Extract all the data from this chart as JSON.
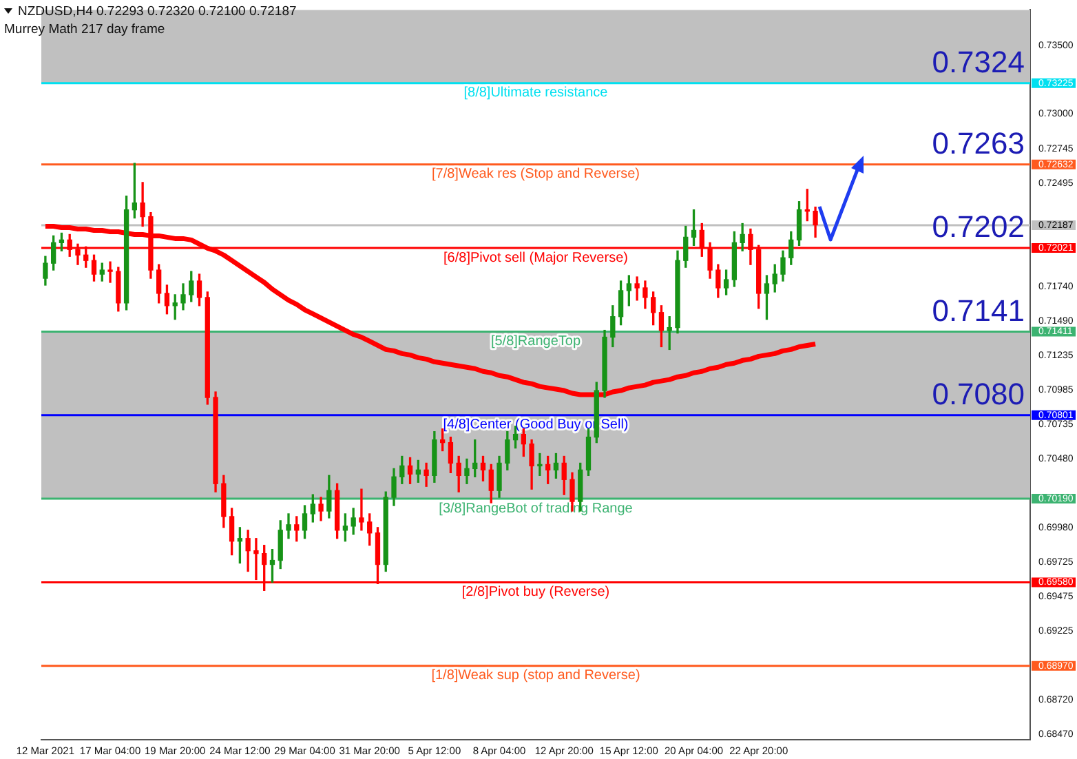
{
  "chart_data": {
    "type": "candlestick",
    "title": "NZDUSD,H4  0.72293 0.72320 0.72100 0.72187",
    "subtitle": "Murrey Math 217 day frame",
    "categories": [
      "12 Mar 2021",
      null,
      null,
      null,
      null,
      null,
      null,
      null,
      "17 Mar 04:00",
      null,
      null,
      null,
      null,
      null,
      null,
      null,
      "19 Mar 20:00",
      null,
      null,
      null,
      null,
      null,
      null,
      null,
      "24 Mar 12:00",
      null,
      null,
      null,
      null,
      null,
      null,
      null,
      "29 Mar 04:00",
      null,
      null,
      null,
      null,
      null,
      null,
      null,
      "31 Mar 20:00",
      null,
      null,
      null,
      null,
      null,
      null,
      null,
      "5 Apr 12:00",
      null,
      null,
      null,
      null,
      null,
      null,
      null,
      "8 Apr 04:00",
      null,
      null,
      null,
      null,
      null,
      null,
      null,
      "12 Apr 20:00",
      null,
      null,
      null,
      null,
      null,
      null,
      null,
      "15 Apr 12:00",
      null,
      null,
      null,
      null,
      null,
      null,
      null,
      "20 Apr 04:00",
      null,
      null,
      null,
      null,
      null,
      null,
      null,
      "22 Apr 20:00",
      null,
      null,
      null,
      null,
      null,
      null,
      null,
      null,
      null,
      null,
      null,
      null,
      null,
      null,
      null,
      null,
      null,
      null,
      null,
      null,
      null,
      null,
      null,
      null,
      null,
      null,
      null,
      null,
      null,
      null,
      null,
      null,
      null
    ],
    "series": [
      {
        "type": "candlestick",
        "ohlc": [
          [
            0.718,
            0.7196,
            0.7175,
            0.7191
          ],
          [
            0.7191,
            0.7211,
            0.7186,
            0.7206
          ],
          [
            0.7206,
            0.7213,
            0.72,
            0.7208
          ],
          [
            0.7208,
            0.7212,
            0.7196,
            0.7201
          ],
          [
            0.7201,
            0.7205,
            0.719,
            0.7197
          ],
          [
            0.7197,
            0.7203,
            0.7188,
            0.7193
          ],
          [
            0.7193,
            0.7197,
            0.7178,
            0.7183
          ],
          [
            0.7183,
            0.7191,
            0.7178,
            0.7186
          ],
          [
            0.7186,
            0.7192,
            0.7177,
            0.7185
          ],
          [
            0.7185,
            0.7188,
            0.7156,
            0.7162
          ],
          [
            0.7162,
            0.724,
            0.7157,
            0.723
          ],
          [
            0.723,
            0.7264,
            0.7224,
            0.7235
          ],
          [
            0.7235,
            0.725,
            0.7218,
            0.7225
          ],
          [
            0.7225,
            0.7228,
            0.718,
            0.7186
          ],
          [
            0.7186,
            0.719,
            0.7162,
            0.7169
          ],
          [
            0.7169,
            0.7175,
            0.7154,
            0.716
          ],
          [
            0.716,
            0.7168,
            0.715,
            0.7162
          ],
          [
            0.7162,
            0.7176,
            0.7157,
            0.7168
          ],
          [
            0.7168,
            0.7185,
            0.7163,
            0.7178
          ],
          [
            0.7178,
            0.7183,
            0.716,
            0.7166
          ],
          [
            0.7166,
            0.717,
            0.7088,
            0.7093
          ],
          [
            0.7093,
            0.7097,
            0.7024,
            0.703
          ],
          [
            0.703,
            0.7036,
            0.6998,
            0.7006
          ],
          [
            0.7006,
            0.7012,
            0.6978,
            0.6988
          ],
          [
            0.6988,
            0.6998,
            0.6972,
            0.699
          ],
          [
            0.699,
            0.6996,
            0.6966,
            0.6981
          ],
          [
            0.6981,
            0.699,
            0.696,
            0.6979
          ],
          [
            0.6979,
            0.6985,
            0.6952,
            0.6971
          ],
          [
            0.6971,
            0.6982,
            0.6958,
            0.6974
          ],
          [
            0.6974,
            0.7003,
            0.6968,
            0.6996
          ],
          [
            0.6996,
            0.7008,
            0.699,
            0.7
          ],
          [
            0.7,
            0.7006,
            0.6988,
            0.6996
          ],
          [
            0.6996,
            0.7014,
            0.699,
            0.7008
          ],
          [
            0.7008,
            0.7022,
            0.7002,
            0.7015
          ],
          [
            0.7015,
            0.702,
            0.7003,
            0.701
          ],
          [
            0.701,
            0.7036,
            0.7005,
            0.7025
          ],
          [
            0.7025,
            0.703,
            0.699,
            0.6996
          ],
          [
            0.6996,
            0.7008,
            0.6988,
            0.6999
          ],
          [
            0.6999,
            0.7012,
            0.6993,
            0.7005
          ],
          [
            0.7005,
            0.7026,
            0.6996,
            0.7002
          ],
          [
            0.7002,
            0.7008,
            0.6985,
            0.6994
          ],
          [
            0.6994,
            0.6998,
            0.6957,
            0.6971
          ],
          [
            0.6971,
            0.7024,
            0.6966,
            0.702
          ],
          [
            0.702,
            0.7041,
            0.7014,
            0.7035
          ],
          [
            0.7035,
            0.705,
            0.703,
            0.7043
          ],
          [
            0.7043,
            0.7049,
            0.703,
            0.7037
          ],
          [
            0.7037,
            0.7047,
            0.7031,
            0.704
          ],
          [
            0.704,
            0.7045,
            0.7028,
            0.7036
          ],
          [
            0.7036,
            0.7068,
            0.7031,
            0.7062
          ],
          [
            0.7062,
            0.707,
            0.7054,
            0.706
          ],
          [
            0.706,
            0.7064,
            0.7038,
            0.7045
          ],
          [
            0.7045,
            0.705,
            0.7024,
            0.7036
          ],
          [
            0.7036,
            0.7048,
            0.703,
            0.7041
          ],
          [
            0.7041,
            0.7062,
            0.7035,
            0.7045
          ],
          [
            0.7045,
            0.705,
            0.7032,
            0.704
          ],
          [
            0.704,
            0.7044,
            0.7016,
            0.7025
          ],
          [
            0.7025,
            0.705,
            0.702,
            0.7045
          ],
          [
            0.7045,
            0.7068,
            0.704,
            0.7062
          ],
          [
            0.7062,
            0.7072,
            0.7056,
            0.7066
          ],
          [
            0.7066,
            0.707,
            0.705,
            0.7059
          ],
          [
            0.7059,
            0.7062,
            0.7026,
            0.7043
          ],
          [
            0.7043,
            0.7052,
            0.7036,
            0.7044
          ],
          [
            0.7044,
            0.705,
            0.703,
            0.704
          ],
          [
            0.704,
            0.7052,
            0.7034,
            0.7045
          ],
          [
            0.7045,
            0.705,
            0.7022,
            0.7033
          ],
          [
            0.7033,
            0.7038,
            0.701,
            0.7017
          ],
          [
            0.7017,
            0.7045,
            0.701,
            0.704
          ],
          [
            0.704,
            0.707,
            0.7036,
            0.7064
          ],
          [
            0.7064,
            0.7104,
            0.706,
            0.7098
          ],
          [
            0.7098,
            0.7142,
            0.7093,
            0.7137
          ],
          [
            0.7137,
            0.716,
            0.713,
            0.7152
          ],
          [
            0.7152,
            0.7178,
            0.7146,
            0.7171
          ],
          [
            0.7171,
            0.7182,
            0.716,
            0.7176
          ],
          [
            0.7176,
            0.7181,
            0.7164,
            0.7173
          ],
          [
            0.7173,
            0.7178,
            0.7158,
            0.7166
          ],
          [
            0.7166,
            0.717,
            0.7146,
            0.7155
          ],
          [
            0.7155,
            0.716,
            0.713,
            0.7142
          ],
          [
            0.7142,
            0.7152,
            0.7128,
            0.7144
          ],
          [
            0.7144,
            0.72,
            0.714,
            0.7193
          ],
          [
            0.7193,
            0.7218,
            0.7188,
            0.721
          ],
          [
            0.721,
            0.723,
            0.7204,
            0.7215
          ],
          [
            0.7215,
            0.722,
            0.7196,
            0.7202
          ],
          [
            0.7202,
            0.7206,
            0.718,
            0.7186
          ],
          [
            0.7186,
            0.719,
            0.7166,
            0.7173
          ],
          [
            0.7173,
            0.7186,
            0.7168,
            0.7179
          ],
          [
            0.7179,
            0.7214,
            0.7174,
            0.7206
          ],
          [
            0.7206,
            0.722,
            0.72,
            0.7212
          ],
          [
            0.7212,
            0.7216,
            0.719,
            0.7201
          ],
          [
            0.7201,
            0.7204,
            0.7158,
            0.7169
          ],
          [
            0.7169,
            0.7182,
            0.715,
            0.7176
          ],
          [
            0.7176,
            0.719,
            0.717,
            0.7183
          ],
          [
            0.7183,
            0.72,
            0.7178,
            0.7195
          ],
          [
            0.7195,
            0.7214,
            0.719,
            0.7208
          ],
          [
            0.7208,
            0.7236,
            0.7204,
            0.723
          ],
          [
            0.723,
            0.7245,
            0.7222,
            0.7229
          ],
          [
            0.7229,
            0.7232,
            0.721,
            0.7219
          ],
          null,
          null,
          null,
          null,
          null,
          null,
          null,
          null,
          null,
          null,
          null,
          null,
          null,
          null,
          null,
          null,
          null,
          null,
          null,
          null,
          null,
          null,
          null,
          null,
          null,
          null
        ],
        "colors": [
          "#179317",
          "#179317",
          "#179317",
          "#ff0000",
          "#ff0000",
          "#ff0000",
          "#ff0000",
          "#179317",
          "#ff0000",
          "#ff0000",
          "#179317",
          "#179317",
          "#ff0000",
          "#ff0000",
          "#ff0000",
          "#ff0000",
          "#179317",
          "#179317",
          "#179317",
          "#ff0000",
          "#ff0000",
          "#ff0000",
          "#ff0000",
          "#ff0000",
          "#179317",
          "#ff0000",
          "#ff0000",
          "#ff0000",
          "#179317",
          "#179317",
          "#179317",
          "#ff0000",
          "#179317",
          "#179317",
          "#ff0000",
          "#179317",
          "#ff0000",
          "#179317",
          "#179317",
          "#ff0000",
          "#ff0000",
          "#ff0000",
          "#179317",
          "#179317",
          "#179317",
          "#ff0000",
          "#179317",
          "#ff0000",
          "#179317",
          "#ff0000",
          "#ff0000",
          "#ff0000",
          "#179317",
          "#179317",
          "#ff0000",
          "#ff0000",
          "#179317",
          "#179317",
          "#179317",
          "#ff0000",
          "#ff0000",
          "#179317",
          "#ff0000",
          "#179317",
          "#ff0000",
          "#ff0000",
          "#179317",
          "#179317",
          "#179317",
          "#179317",
          "#179317",
          "#179317",
          "#179317",
          "#ff0000",
          "#ff0000",
          "#ff0000",
          "#ff0000",
          "#179317",
          "#179317",
          "#179317",
          "#179317",
          "#ff0000",
          "#ff0000",
          "#ff0000",
          "#179317",
          "#179317",
          "#179317",
          "#ff0000",
          "#ff0000",
          "#179317",
          "#179317",
          "#179317",
          "#179317",
          "#179317",
          "#ff0000",
          "#ff0000",
          null,
          null,
          null,
          null,
          null,
          null,
          null,
          null,
          null,
          null,
          null,
          null,
          null,
          null,
          null,
          null,
          null,
          null,
          null,
          null,
          null,
          null,
          null,
          null,
          null,
          null
        ]
      },
      {
        "type": "line",
        "color": "#ff0000",
        "values": [
          0.7218,
          0.7218,
          0.7217,
          0.7217,
          0.7216,
          0.7216,
          0.7215,
          0.7215,
          0.7214,
          0.7214,
          0.7213,
          0.7212,
          0.7212,
          0.7211,
          0.7211,
          0.721,
          0.7209,
          0.7209,
          0.7208,
          0.7205,
          0.7202,
          0.72,
          0.7197,
          0.7193,
          0.7189,
          0.7185,
          0.7181,
          0.7177,
          0.7172,
          0.7168,
          0.7164,
          0.7161,
          0.7157,
          0.7154,
          0.7151,
          0.7148,
          0.7145,
          0.7142,
          0.7139,
          0.7137,
          0.7134,
          0.7131,
          0.7128,
          0.7127,
          0.7125,
          0.7124,
          0.7122,
          0.7121,
          0.7119,
          0.7118,
          0.7117,
          0.7116,
          0.7115,
          0.7114,
          0.7112,
          0.7111,
          0.7109,
          0.7108,
          0.7106,
          0.7104,
          0.7103,
          0.7101,
          0.71,
          0.7099,
          0.7098,
          0.7096,
          0.7095,
          0.7095,
          0.7095,
          0.7095,
          0.7097,
          0.7098,
          0.71,
          0.7101,
          0.7102,
          0.7104,
          0.7105,
          0.7106,
          0.7108,
          0.7109,
          0.7111,
          0.7112,
          0.7114,
          0.7115,
          0.7117,
          0.7118,
          0.712,
          0.7121,
          0.7123,
          0.7124,
          0.7125,
          0.7127,
          0.7128,
          0.713,
          0.7131,
          0.7132,
          null,
          null,
          null,
          null,
          null,
          null,
          null,
          null,
          null,
          null,
          null,
          null,
          null,
          null,
          null,
          null,
          null,
          null,
          null,
          null,
          null,
          null,
          null,
          null,
          null,
          null
        ]
      }
    ],
    "ylim": [
      0.6843,
      0.7376
    ],
    "yticks": [
      {
        "value": 0.735,
        "label": "0.73500"
      },
      {
        "value": 0.73225,
        "label": "0.73225"
      },
      {
        "value": 0.73,
        "label": "0.73000"
      },
      {
        "value": 0.72632,
        "label": "0.72632"
      },
      {
        "value": 0.72187,
        "label": "0.72187"
      },
      {
        "value": 0.72021,
        "label": "0.72021"
      },
      {
        "value": 0.71411,
        "label": "0.71411"
      },
      {
        "value": 0.70801,
        "label": "0.70801"
      },
      {
        "value": 0.7019,
        "label": "0.70190"
      },
      {
        "value": 0.6958,
        "label": "0.69580"
      },
      {
        "value": 0.6897,
        "label": "0.68970"
      },
      {
        "value": 0.72745,
        "label": "0.72745"
      },
      {
        "value": 0.72495,
        "label": "0.72495"
      },
      {
        "value": 0.7174,
        "label": "0.71740"
      },
      {
        "value": 0.7149,
        "label": "0.71490"
      },
      {
        "value": 0.71235,
        "label": "0.71235"
      },
      {
        "value": 0.70985,
        "label": "0.70985"
      },
      {
        "value": 0.70735,
        "label": "0.70735"
      },
      {
        "value": 0.7048,
        "label": "0.70480"
      },
      {
        "value": 0.6998,
        "label": "0.69980"
      },
      {
        "value": 0.69725,
        "label": "0.69725"
      },
      {
        "value": 0.69475,
        "label": "0.69475"
      },
      {
        "value": 0.69225,
        "label": "0.69225"
      },
      {
        "value": 0.6872,
        "label": "0.68720"
      },
      {
        "value": 0.6847,
        "label": "0.68470"
      }
    ],
    "bands": [
      {
        "axis": "y",
        "from": 0.7019,
        "to": 0.71411,
        "color": "#c0c0c0"
      },
      {
        "axis": "y",
        "from": 0.73225,
        "to": 0.7376,
        "color": "#c0c0c0"
      }
    ],
    "ref_lines": [
      {
        "axis": "y",
        "value": 0.73225,
        "label": "[8/8]Ultimate resistance",
        "color": "#00e0f0"
      },
      {
        "axis": "y",
        "value": 0.72632,
        "label": "[7/8]Weak res (Stop and Reverse)",
        "color": "#ff5a1e"
      },
      {
        "axis": "y",
        "value": 0.72187,
        "label": null,
        "color": "#c0c0c0"
      },
      {
        "axis": "y",
        "value": 0.72021,
        "label": "[6/8]Pivot sell (Major Reverse)",
        "color": "#ff0000"
      },
      {
        "axis": "y",
        "value": 0.71411,
        "label": "[5/8]RangeTop",
        "color": "#3cb371"
      },
      {
        "axis": "y",
        "value": 0.70801,
        "label": "[4/8]Center (Good Buy or Sell)",
        "color": "#0000ff"
      },
      {
        "axis": "y",
        "value": 0.7019,
        "label": "[3/8]RangeBot of trading Range",
        "color": "#3cb371"
      },
      {
        "axis": "y",
        "value": 0.6958,
        "label": "[2/8]Pivot buy (Reverse)",
        "color": "#ff0000"
      },
      {
        "axis": "y",
        "value": 0.6897,
        "label": "[1/8]Weak sup (stop and Reverse)",
        "color": "#ff5a1e"
      }
    ],
    "annotations": [
      {
        "text": "0.7324",
        "y": 0.73225
      },
      {
        "text": "0.7263",
        "y": 0.72632
      },
      {
        "text": "0.7202",
        "y": 0.72021
      },
      {
        "text": "0.7141",
        "y": 0.71411
      },
      {
        "text": "0.7080",
        "y": 0.70801
      }
    ],
    "grid": false,
    "legend": false
  }
}
